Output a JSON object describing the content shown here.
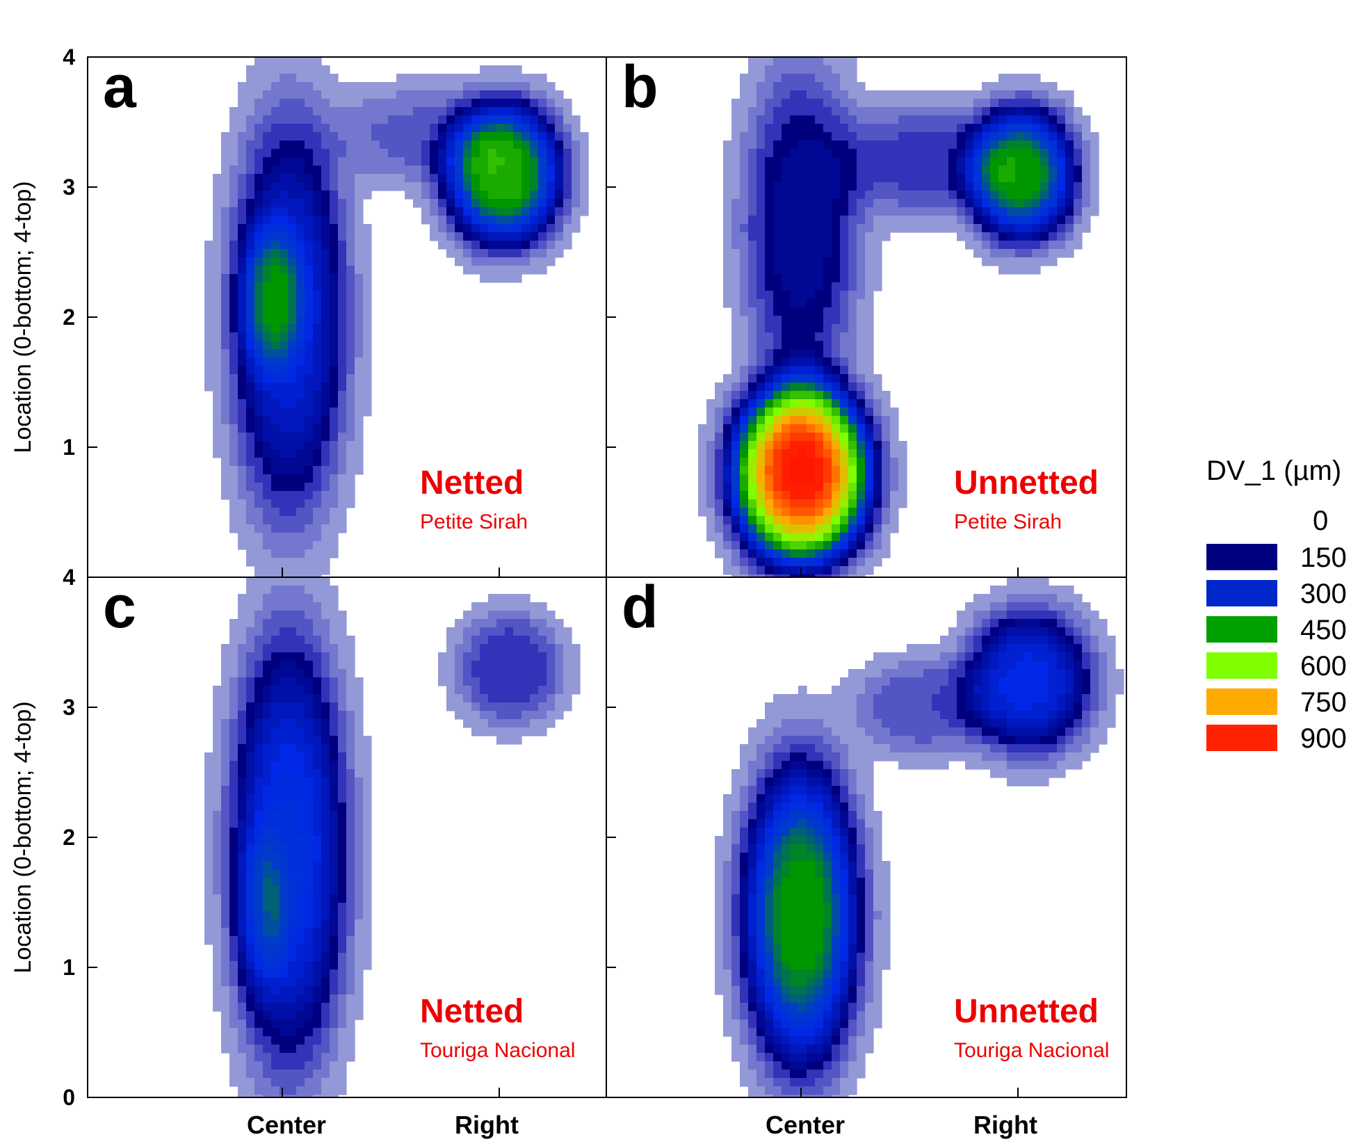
{
  "chart_data": {
    "type": "heatmap",
    "colorbar": {
      "title": "DV_1 (µm)",
      "levels": [
        0,
        150,
        300,
        450,
        600,
        750,
        900
      ],
      "colors": [
        "#00007f",
        "#0026cc",
        "#00a000",
        "#7fff00",
        "#ffaa00",
        "#ff2200"
      ],
      "low_color": "#aab0dd"
    },
    "x_categories": [
      "Center",
      "Right"
    ],
    "y_ticks": [
      "0",
      "1",
      "2",
      "3",
      "4"
    ],
    "y_range": [
      0,
      4
    ],
    "ylabel": "Location (0-bottom; 4-top)",
    "panels": [
      {
        "letter": "a",
        "treatment": "Netted",
        "cultivar": "Petite Sirah",
        "blobs": [
          {
            "x": 0.03,
            "y": 2.0,
            "sx": 0.22,
            "sy": 1.25,
            "peak": 290
          },
          {
            "x": -0.05,
            "y": 2.15,
            "sx": 0.12,
            "sy": 0.45,
            "peak": 180
          },
          {
            "x": 1.02,
            "y": 3.1,
            "sx": 0.22,
            "sy": 0.45,
            "peak": 500
          },
          {
            "x": 0.6,
            "y": 3.4,
            "sx": 0.3,
            "sy": 0.3,
            "peak": 90
          }
        ]
      },
      {
        "letter": "b",
        "treatment": "Unnetted",
        "cultivar": "Petite Sirah",
        "blobs": [
          {
            "x": 0.0,
            "y": 0.8,
            "sx": 0.25,
            "sy": 0.55,
            "peak": 920
          },
          {
            "x": 0.0,
            "y": 2.7,
            "sx": 0.22,
            "sy": 1.0,
            "peak": 200
          },
          {
            "x": 1.02,
            "y": 3.1,
            "sx": 0.2,
            "sy": 0.42,
            "peak": 460
          },
          {
            "x": 0.55,
            "y": 3.2,
            "sx": 0.3,
            "sy": 0.35,
            "peak": 130
          }
        ]
      },
      {
        "letter": "c",
        "treatment": "Netted",
        "cultivar": "Touriga Nacional",
        "blobs": [
          {
            "x": 0.03,
            "y": 1.9,
            "sx": 0.22,
            "sy": 1.35,
            "peak": 330
          },
          {
            "x": -0.1,
            "y": 1.4,
            "sx": 0.1,
            "sy": 0.5,
            "peak": 100
          },
          {
            "x": 1.05,
            "y": 3.3,
            "sx": 0.2,
            "sy": 0.35,
            "peak": 150
          }
        ]
      },
      {
        "letter": "d",
        "treatment": "Unnetted",
        "cultivar": "Touriga Nacional",
        "blobs": [
          {
            "x": 0.0,
            "y": 1.4,
            "sx": 0.22,
            "sy": 0.95,
            "peak": 470
          },
          {
            "x": 1.05,
            "y": 3.2,
            "sx": 0.24,
            "sy": 0.45,
            "peak": 310
          },
          {
            "x": 0.55,
            "y": 3.0,
            "sx": 0.25,
            "sy": 0.3,
            "peak": 110
          }
        ]
      }
    ]
  }
}
